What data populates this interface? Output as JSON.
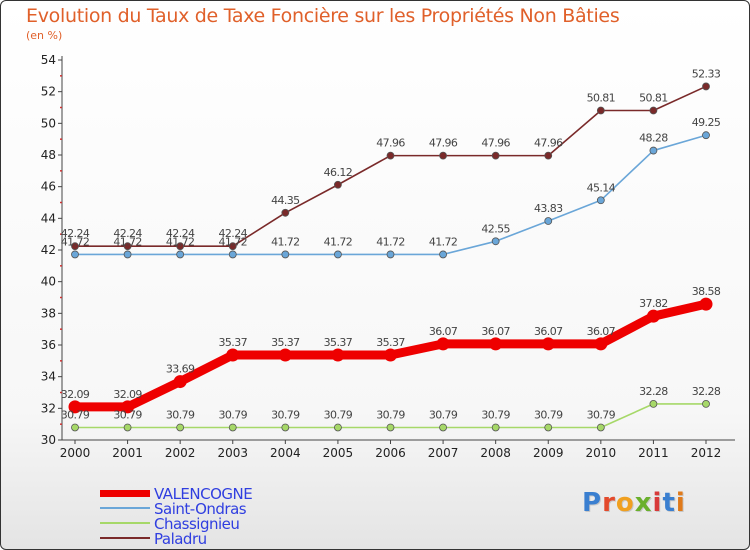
{
  "header": {
    "title": "Evolution du Taux de Taxe Foncière sur les Propriétés Non Bâties",
    "subtitle": "(en %)"
  },
  "brand": {
    "text": "Proxiti",
    "letter_colors": [
      "#3a7fd0",
      "#e34a2c",
      "#f0a020",
      "#6ab02c",
      "#d83a3a",
      "#3a7fd0",
      "#e07a1a"
    ]
  },
  "chart_data": {
    "type": "line",
    "title": "Evolution du Taux de Taxe Foncière sur les Propriétés Non Bâties",
    "ylabel": "(en %)",
    "xlabel": "",
    "x": [
      "2000",
      "2001",
      "2002",
      "2003",
      "2004",
      "2005",
      "2006",
      "2007",
      "2008",
      "2009",
      "2010",
      "2011",
      "2012"
    ],
    "ylim": [
      30,
      54
    ],
    "yticks": [
      30,
      32,
      34,
      36,
      38,
      40,
      42,
      44,
      46,
      48,
      50,
      52,
      54
    ],
    "grid": false,
    "legend_position": "bottom-left",
    "series": [
      {
        "name": "VALENCOGNE",
        "color": "#ee0000",
        "values": [
          32.09,
          32.09,
          33.69,
          35.37,
          35.37,
          35.37,
          35.37,
          36.07,
          36.07,
          36.07,
          36.07,
          37.82,
          38.58
        ],
        "labels": [
          "32.09",
          "32.09",
          "33.69",
          "35.37",
          "35.37",
          "35.37",
          "35.37",
          "36.07",
          "36.07",
          "36.07",
          "36.07",
          "37.82",
          "38.58"
        ]
      },
      {
        "name": "Saint-Ondras",
        "color": "#6aa6d8",
        "values": [
          41.72,
          41.72,
          41.72,
          41.72,
          41.72,
          41.72,
          41.72,
          41.72,
          42.55,
          43.83,
          45.14,
          48.28,
          49.25
        ],
        "labels": [
          "41.72",
          "41.72",
          "41.72",
          "41.72",
          "41.72",
          "41.72",
          "41.72",
          "41.72",
          "42.55",
          "43.83",
          "45.14",
          "48.28",
          "49.25"
        ]
      },
      {
        "name": "Chassignieu",
        "color": "#a6d868",
        "values": [
          30.79,
          30.79,
          30.79,
          30.79,
          30.79,
          30.79,
          30.79,
          30.79,
          30.79,
          30.79,
          30.79,
          32.28,
          32.28
        ],
        "labels": [
          "30.79",
          "30.79",
          "30.79",
          "30.79",
          "30.79",
          "30.79",
          "30.79",
          "30.79",
          "30.79",
          "30.79",
          "30.79",
          "32.28",
          "32.28"
        ]
      },
      {
        "name": "Paladru",
        "color": "#7a2a2a",
        "values": [
          42.24,
          42.24,
          42.24,
          42.24,
          44.35,
          46.12,
          47.96,
          47.96,
          47.96,
          47.96,
          50.81,
          50.81,
          52.33
        ],
        "labels": [
          "42.24",
          "42.24",
          "42.24",
          "42.24",
          "44.35",
          "46.12",
          "47.96",
          "47.96",
          "47.96",
          "47.96",
          "50.81",
          "50.81",
          "52.33"
        ]
      }
    ]
  }
}
